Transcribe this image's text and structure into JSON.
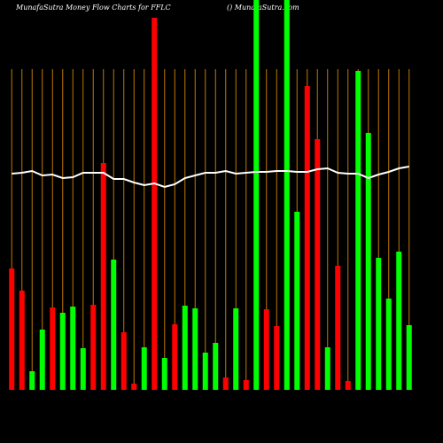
{
  "chart_data": {
    "type": "bar",
    "title": "MunafaSutra  Money Flow  Charts for FFLC",
    "subtitle": "() MunafaSutra.com",
    "categories": [
      null,
      null,
      null,
      null,
      null,
      null,
      null,
      null,
      null,
      null,
      null,
      null,
      null,
      null,
      null,
      null,
      null,
      null,
      null,
      null,
      null,
      null,
      null,
      null,
      null,
      null,
      null,
      null,
      null,
      null,
      null,
      null,
      null,
      null,
      null,
      null,
      null,
      null,
      null,
      null
    ],
    "values": [
      137,
      112,
      21,
      68,
      93,
      87,
      94,
      47,
      96,
      256,
      147,
      65,
      7,
      48,
      420,
      36,
      74,
      95,
      92,
      42,
      53,
      14,
      92,
      11,
      450,
      91,
      72,
      450,
      201,
      343,
      283,
      48,
      140,
      10,
      360,
      290,
      149,
      103,
      156,
      73
    ],
    "colors": [
      "#ff0000",
      "#ff0000",
      "#00ff00",
      "#00ff00",
      "#ff0000",
      "#00ff00",
      "#00ff00",
      "#00ff00",
      "#ff0000",
      "#ff0000",
      "#00ff00",
      "#ff0000",
      "#ff0000",
      "#00ff00",
      "#ff0000",
      "#00ff00",
      "#ff0000",
      "#00ff00",
      "#00ff00",
      "#00ff00",
      "#00ff00",
      "#ff0000",
      "#00ff00",
      "#ff0000",
      "#00ff00",
      "#ff0000",
      "#ff0000",
      "#00ff00",
      "#00ff00",
      "#ff0000",
      "#ff0000",
      "#00ff00",
      "#ff0000",
      "#ff0000",
      "#00ff00",
      "#00ff00",
      "#00ff00",
      "#00ff00",
      "#00ff00",
      "#00ff00"
    ],
    "line": {
      "color": "#ffffff",
      "values": [
        244,
        245,
        247,
        242,
        243,
        239,
        240,
        245,
        245,
        245,
        238,
        238,
        234,
        231,
        233,
        229,
        232,
        239,
        242,
        245,
        245,
        247,
        244,
        245,
        246,
        246,
        247,
        247,
        246,
        246,
        249,
        250,
        245,
        244,
        244,
        239,
        243,
        246,
        250,
        252
      ]
    },
    "ylim": [
      0,
      440
    ]
  }
}
